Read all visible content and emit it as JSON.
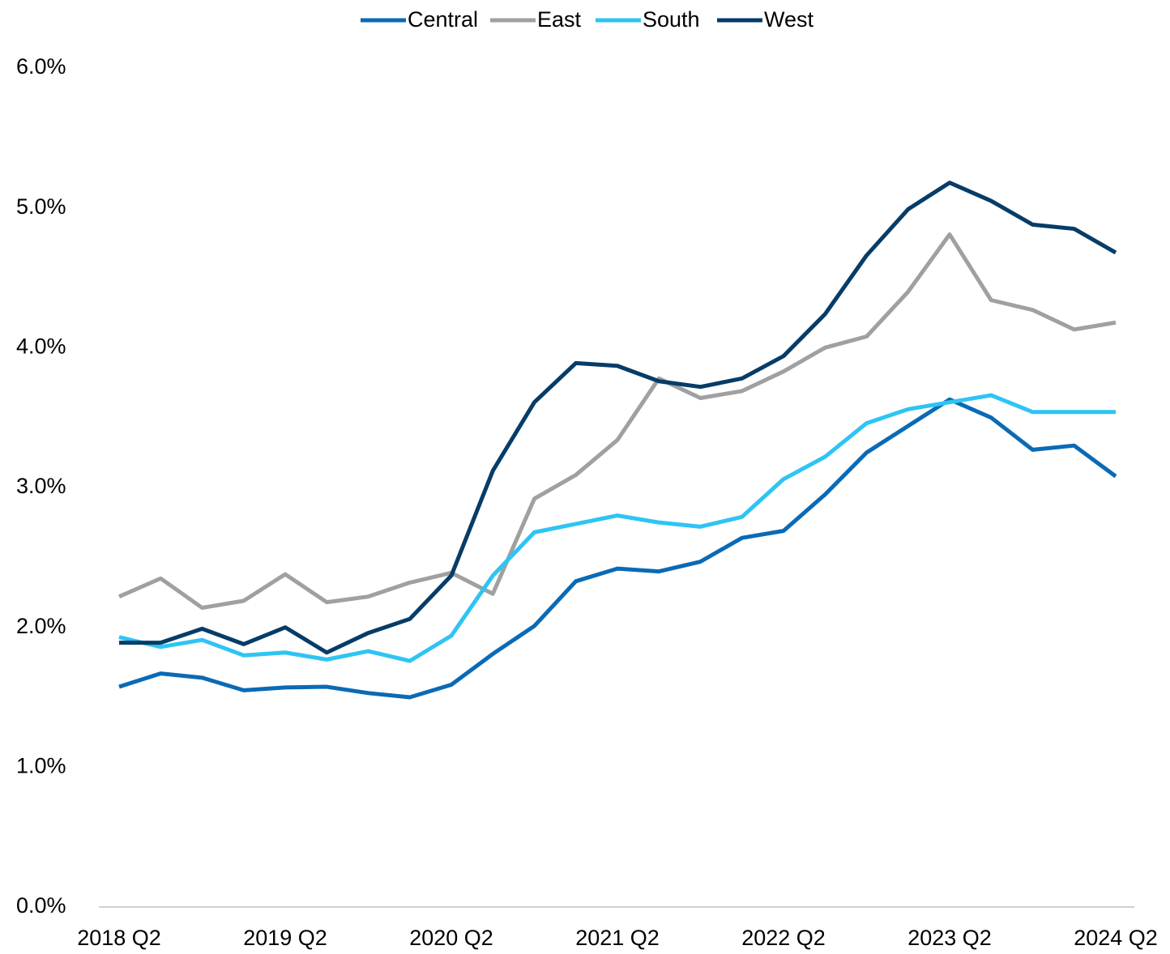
{
  "chart_data": {
    "type": "line",
    "categories": [
      "2018 Q2",
      null,
      null,
      null,
      "2019 Q2",
      null,
      null,
      null,
      "2020 Q2",
      null,
      null,
      null,
      "2021 Q2",
      null,
      null,
      null,
      "2022 Q2",
      null,
      null,
      null,
      "2023 Q2",
      null,
      null,
      null,
      "2024 Q2"
    ],
    "series": [
      {
        "name": "Central",
        "color": "#0a6ab5",
        "values": [
          1.575,
          1.67,
          1.64,
          1.55,
          1.57,
          1.575,
          1.53,
          1.5,
          1.59,
          1.81,
          2.01,
          2.33,
          2.42,
          2.4,
          2.47,
          2.64,
          2.69,
          2.95,
          3.25,
          3.44,
          3.63,
          3.5,
          3.27,
          3.3,
          3.08
        ]
      },
      {
        "name": "East",
        "color": "#a0a0a0",
        "values": [
          2.22,
          2.35,
          2.14,
          2.19,
          2.38,
          2.18,
          2.22,
          2.32,
          2.39,
          2.24,
          2.92,
          3.09,
          3.34,
          3.78,
          3.64,
          3.69,
          3.83,
          4.0,
          4.08,
          4.4,
          4.81,
          4.34,
          4.27,
          4.13,
          4.18
        ]
      },
      {
        "name": "South",
        "color": "#2ec4f4",
        "values": [
          1.93,
          1.86,
          1.91,
          1.8,
          1.82,
          1.77,
          1.83,
          1.76,
          1.94,
          2.37,
          2.68,
          2.74,
          2.8,
          2.75,
          2.72,
          2.79,
          3.06,
          3.22,
          3.46,
          3.56,
          3.61,
          3.66,
          3.54,
          3.54,
          3.54
        ]
      },
      {
        "name": "West",
        "color": "#063c68",
        "values": [
          1.89,
          1.89,
          1.99,
          1.88,
          2.0,
          1.82,
          1.96,
          2.06,
          2.37,
          3.12,
          3.61,
          3.89,
          3.87,
          3.76,
          3.72,
          3.78,
          3.94,
          4.24,
          4.66,
          4.99,
          5.18,
          5.05,
          4.88,
          4.85,
          4.68
        ]
      }
    ],
    "ylim": [
      0,
      6
    ],
    "yticks": [
      {
        "value": 0,
        "label": "0.0%"
      },
      {
        "value": 1,
        "label": "1.0%"
      },
      {
        "value": 2,
        "label": "2.0%"
      },
      {
        "value": 3,
        "label": "3.0%"
      },
      {
        "value": 4,
        "label": "4.0%"
      },
      {
        "value": 5,
        "label": "5.0%"
      },
      {
        "value": 6,
        "label": "6.0%"
      }
    ],
    "grid": false,
    "legend": "top"
  }
}
